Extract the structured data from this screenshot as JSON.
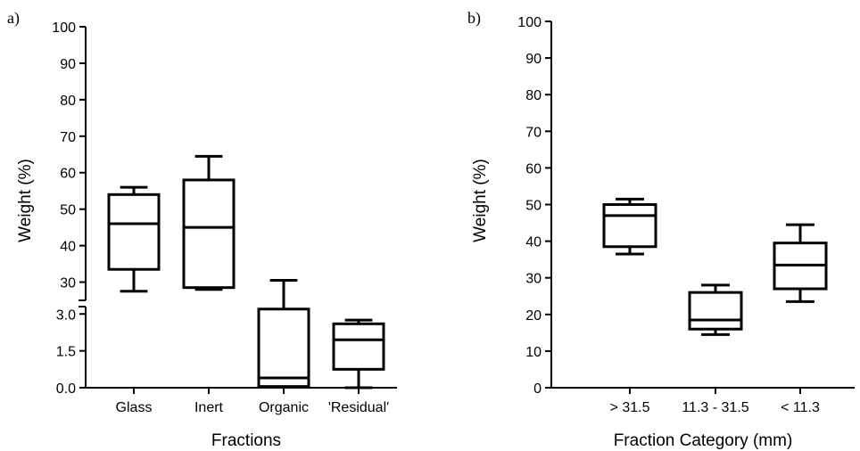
{
  "chart_data": [
    {
      "type": "box",
      "panel_label": "a)",
      "xlabel": "Fractions",
      "ylabel": "Weight (%)",
      "categories": [
        "Glass",
        "Inert",
        "Organic",
        "'Residual'"
      ],
      "y_axis_break": true,
      "upper_segment": {
        "ylim": [
          25,
          100
        ],
        "ticks": [
          30,
          40,
          50,
          60,
          70,
          80,
          90,
          100
        ],
        "tick_labels": [
          "30",
          "40",
          "50",
          "60",
          "70",
          "80",
          "90",
          "100"
        ]
      },
      "lower_segment": {
        "ylim": [
          0,
          3.3
        ],
        "ticks": [
          0,
          1.5,
          3.0
        ],
        "tick_labels": [
          "0.0",
          "1.5",
          "3.0"
        ]
      },
      "boxes": [
        {
          "category": "Glass",
          "min": 27.5,
          "q1": 33.5,
          "median": 46,
          "q3": 54,
          "max": 56
        },
        {
          "category": "Inert",
          "min": 28,
          "q1": 28.5,
          "median": 45,
          "q3": 58,
          "max": 64.5
        },
        {
          "category": "Organic",
          "min": 0.02,
          "q1": 0.05,
          "median": 0.4,
          "q3": 3.2,
          "max": 30.5
        },
        {
          "category": "'Residual'",
          "min": 0.0,
          "q1": 0.75,
          "median": 1.95,
          "q3": 2.6,
          "max": 2.75
        }
      ]
    },
    {
      "type": "box",
      "panel_label": "b)",
      "xlabel": "Fraction Category (mm)",
      "ylabel": "Weight (%)",
      "categories": [
        "> 31.5",
        "11.3 - 31.5",
        "< 11.3"
      ],
      "ylim": [
        0,
        100
      ],
      "ticks": [
        0,
        10,
        20,
        30,
        40,
        50,
        60,
        70,
        80,
        90,
        100
      ],
      "tick_labels": [
        "0",
        "10",
        "20",
        "30",
        "40",
        "50",
        "60",
        "70",
        "80",
        "90",
        "100"
      ],
      "boxes": [
        {
          "category": "> 31.5",
          "min": 36.5,
          "q1": 38.5,
          "median": 47,
          "q3": 50,
          "max": 51.5
        },
        {
          "category": "11.3 - 31.5",
          "min": 14.5,
          "q1": 16,
          "median": 18.5,
          "q3": 26,
          "max": 28
        },
        {
          "category": "< 11.3",
          "min": 23.5,
          "q1": 27,
          "median": 33.5,
          "q3": 39.5,
          "max": 44.5
        }
      ]
    }
  ]
}
